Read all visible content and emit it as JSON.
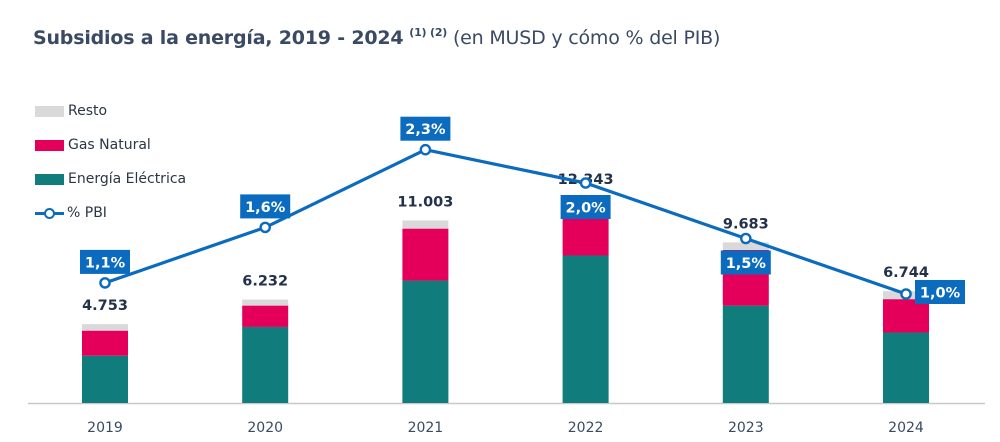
{
  "title": {
    "bold": "Subsidios a la energía, 2019 - 2024",
    "notes": "(1) (2)",
    "subtitle": "(en MUSD y cómo % del PIB)"
  },
  "colors": {
    "resto": "#d9d9d9",
    "gas": "#e4005a",
    "electrica": "#117c7c",
    "pbi_line": "#0b6bbf",
    "label_box": "#0b6bbf",
    "total_text": "#23324a",
    "axis": "#c8c8c8",
    "tick_text": "#3b4a63"
  },
  "chart_data": {
    "type": "bar",
    "stacked": true,
    "title": "Subsidios a la energía, 2019 - 2024 (1) (2) (en MUSD y cómo % del PIB)",
    "xlabel": "",
    "ylabel": "",
    "categories": [
      "2019",
      "2020",
      "2021",
      "2022",
      "2023",
      "2024"
    ],
    "series": [
      {
        "name": "Energía Eléctrica",
        "key": "electrica",
        "values": [
          2850,
          4585,
          7380,
          8890,
          5870,
          4250
        ]
      },
      {
        "name": "Gas Natural",
        "key": "gas",
        "values": [
          1510,
          1285,
          3130,
          2905,
          3355,
          2010
        ]
      },
      {
        "name": "Resto",
        "key": "resto",
        "values": [
          393,
          362,
          493,
          548,
          458,
          484
        ]
      }
    ],
    "totals": [
      4753,
      6232,
      11003,
      12343,
      9683,
      6744
    ],
    "total_labels": [
      "4.753",
      "6.232",
      "11.003",
      "12.343",
      "9.683",
      "6.744"
    ],
    "line_series": {
      "name": "% PBI",
      "type": "line",
      "values": [
        1.1,
        1.6,
        2.3,
        2.0,
        1.5,
        1.0
      ],
      "labels": [
        "1,1%",
        "1,6%",
        "2,3%",
        "2,0%",
        "1,5%",
        "1,0%"
      ],
      "label_position": [
        "above",
        "above",
        "above",
        "below",
        "below",
        "right"
      ]
    },
    "ylim": [
      0,
      22000
    ],
    "y2lim": [
      0,
      3.6
    ],
    "grid": false,
    "legend": {
      "position": "top-left",
      "entries": [
        "Resto",
        "Gas Natural",
        "Energía Eléctrica",
        "% PBI"
      ]
    }
  }
}
